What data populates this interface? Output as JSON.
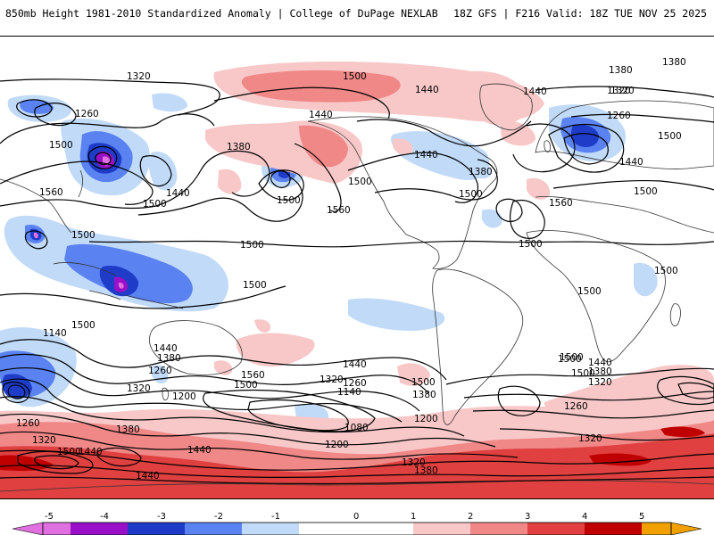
{
  "header": {
    "title_left": "850mb Height 1981-2010 Standardized Anomaly | College of DuPage NEXLAB",
    "title_right": "18Z GFS | F216 Valid: 18Z TUE NOV 25 2025"
  },
  "colors": {
    "neg5": "#e070e0",
    "neg4": "#9a10c8",
    "neg3": "#1e3cc8",
    "neg2": "#5a82f0",
    "neg1": "#c0daf8",
    "zero": "#ffffff",
    "pos1": "#f8c8c8",
    "pos2": "#f08888",
    "pos3": "#e04040",
    "pos4": "#c00000",
    "pos5": "#f0a000"
  },
  "contour_labels": [
    "1320",
    "1500",
    "1440",
    "1380",
    "1260",
    "1500",
    "1560",
    "1500",
    "1440",
    "1380",
    "1440",
    "1500",
    "1500",
    "1320",
    "1380",
    "1440",
    "1320",
    "1260",
    "1500",
    "1440",
    "1500",
    "1560",
    "1500",
    "1380",
    "1440",
    "1500",
    "1500",
    "1500",
    "1560",
    "1500",
    "1500",
    "1500",
    "1500",
    "1500",
    "1140",
    "1320",
    "1260",
    "1200",
    "1440",
    "1380",
    "1560",
    "1500",
    "1440",
    "1320",
    "1260",
    "1140",
    "1200",
    "1500",
    "1380",
    "1080",
    "1200",
    "1320",
    "1380",
    "1500",
    "1260",
    "1500",
    "1440",
    "1380",
    "1320",
    "1260",
    "1440",
    "1320",
    "1440",
    "1500",
    "1320",
    "1380",
    "1440"
  ],
  "legend": {
    "ticks": [
      "-5",
      "-4",
      "-3",
      "-2",
      "-1",
      "0",
      "1",
      "2",
      "3",
      "4",
      "5"
    ]
  }
}
